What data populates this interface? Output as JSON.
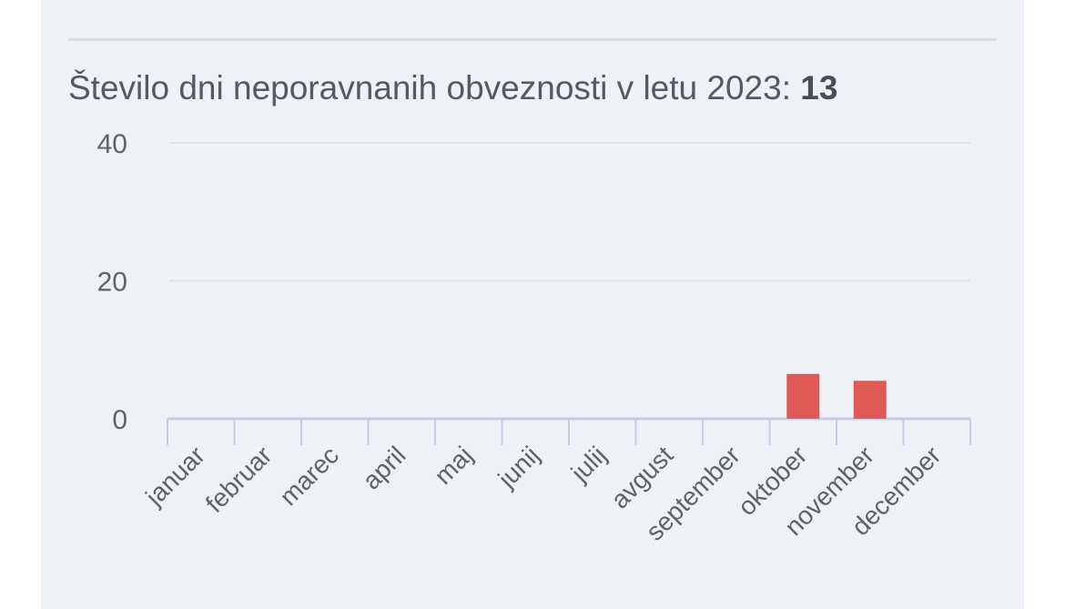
{
  "header": {
    "title_text": "Število dni neporavnanih obveznosti v letu 2023:",
    "title_value": "13"
  },
  "chart_data": {
    "type": "bar",
    "categories": [
      "januar",
      "februar",
      "marec",
      "april",
      "maj",
      "junij",
      "julij",
      "avgust",
      "september",
      "oktober",
      "november",
      "december"
    ],
    "values": [
      0,
      0,
      0,
      0,
      0,
      0,
      0,
      0,
      0,
      6.5,
      5.5,
      0
    ],
    "yticks": [
      0,
      20,
      40
    ],
    "ylim": [
      0,
      40
    ],
    "bar_color": "#e05a55",
    "grid": true
  },
  "colors": {
    "card_bg": "#eef1f6",
    "axis": "#c5cce8",
    "grid": "#dfe2e6",
    "text": "#5f6368"
  }
}
